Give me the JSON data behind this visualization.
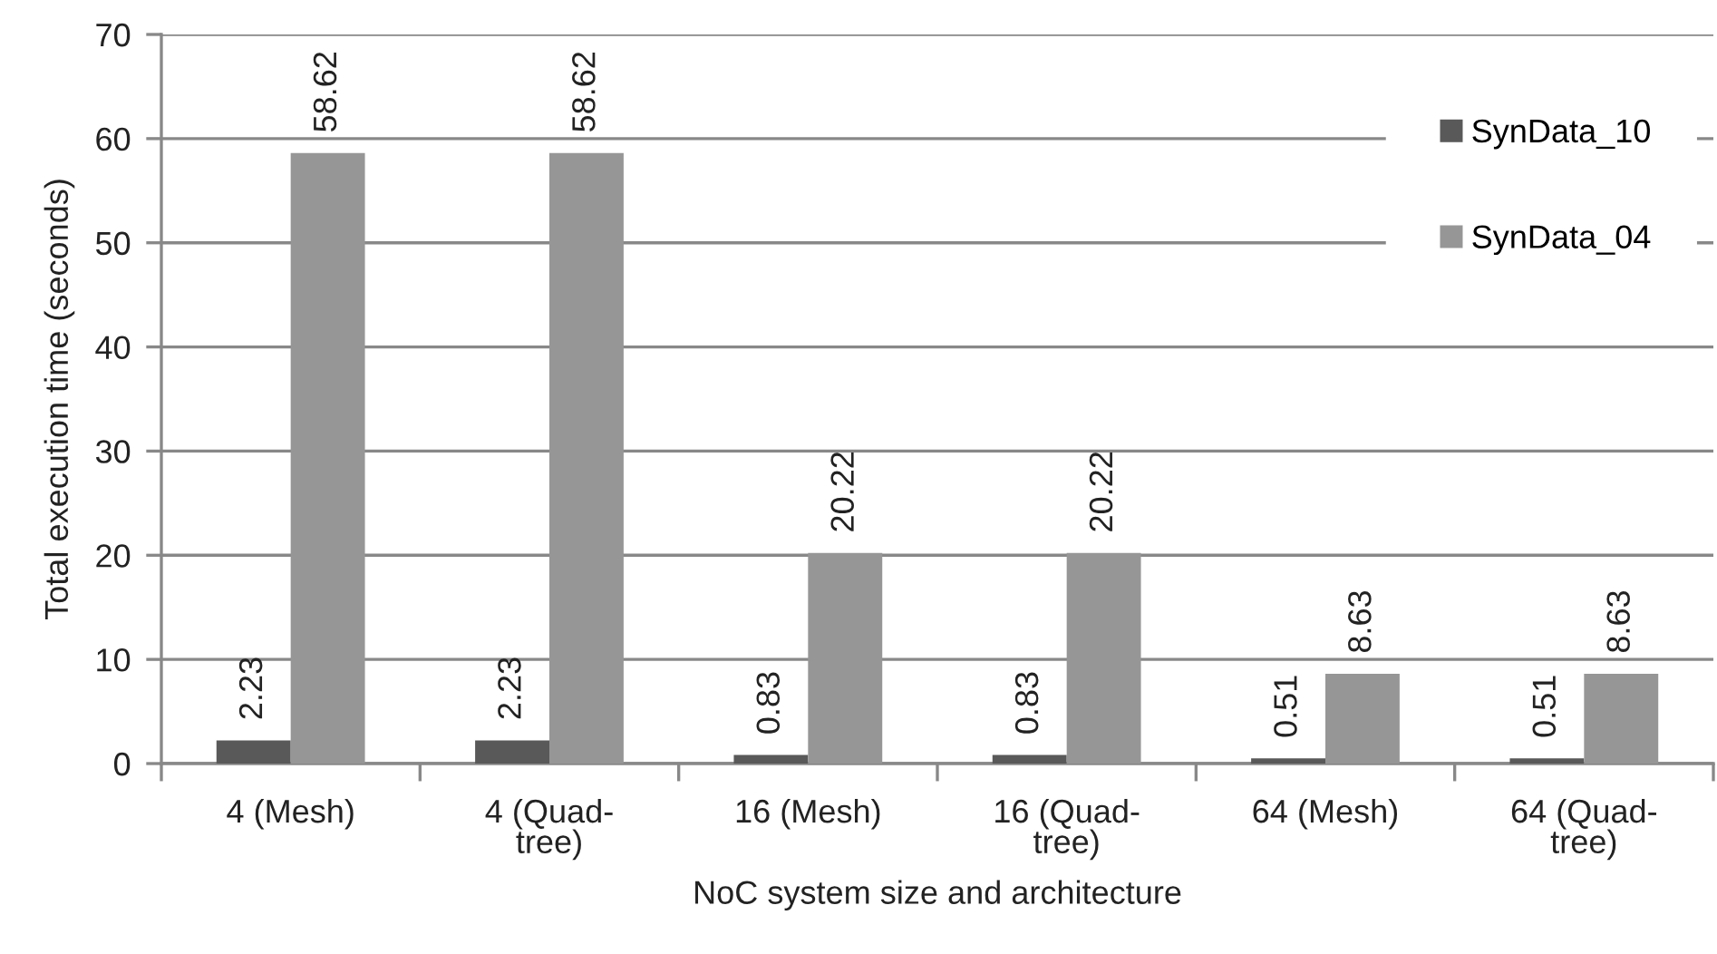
{
  "chart_data": {
    "type": "bar",
    "xlabel": "NoC system size and architecture",
    "ylabel": "Total execution time (seconds)",
    "categories": [
      "4 (Mesh)",
      "4 (Quad-\ntree)",
      "16 (Mesh)",
      "16 (Quad-\ntree)",
      "64 (Mesh)",
      "64 (Quad-\ntree)"
    ],
    "series": [
      {
        "name": "SynData_10",
        "color": "#595959",
        "values": [
          2.23,
          2.23,
          0.83,
          0.83,
          0.51,
          0.51
        ]
      },
      {
        "name": "SynData_04",
        "color": "#969696",
        "values": [
          58.62,
          58.62,
          20.22,
          20.22,
          8.63,
          8.63
        ]
      }
    ],
    "ylim": [
      0,
      70
    ],
    "yticks": [
      0,
      10,
      20,
      30,
      40,
      50,
      60,
      70
    ],
    "grid": "y",
    "legend": "top right",
    "data_labels": true
  }
}
